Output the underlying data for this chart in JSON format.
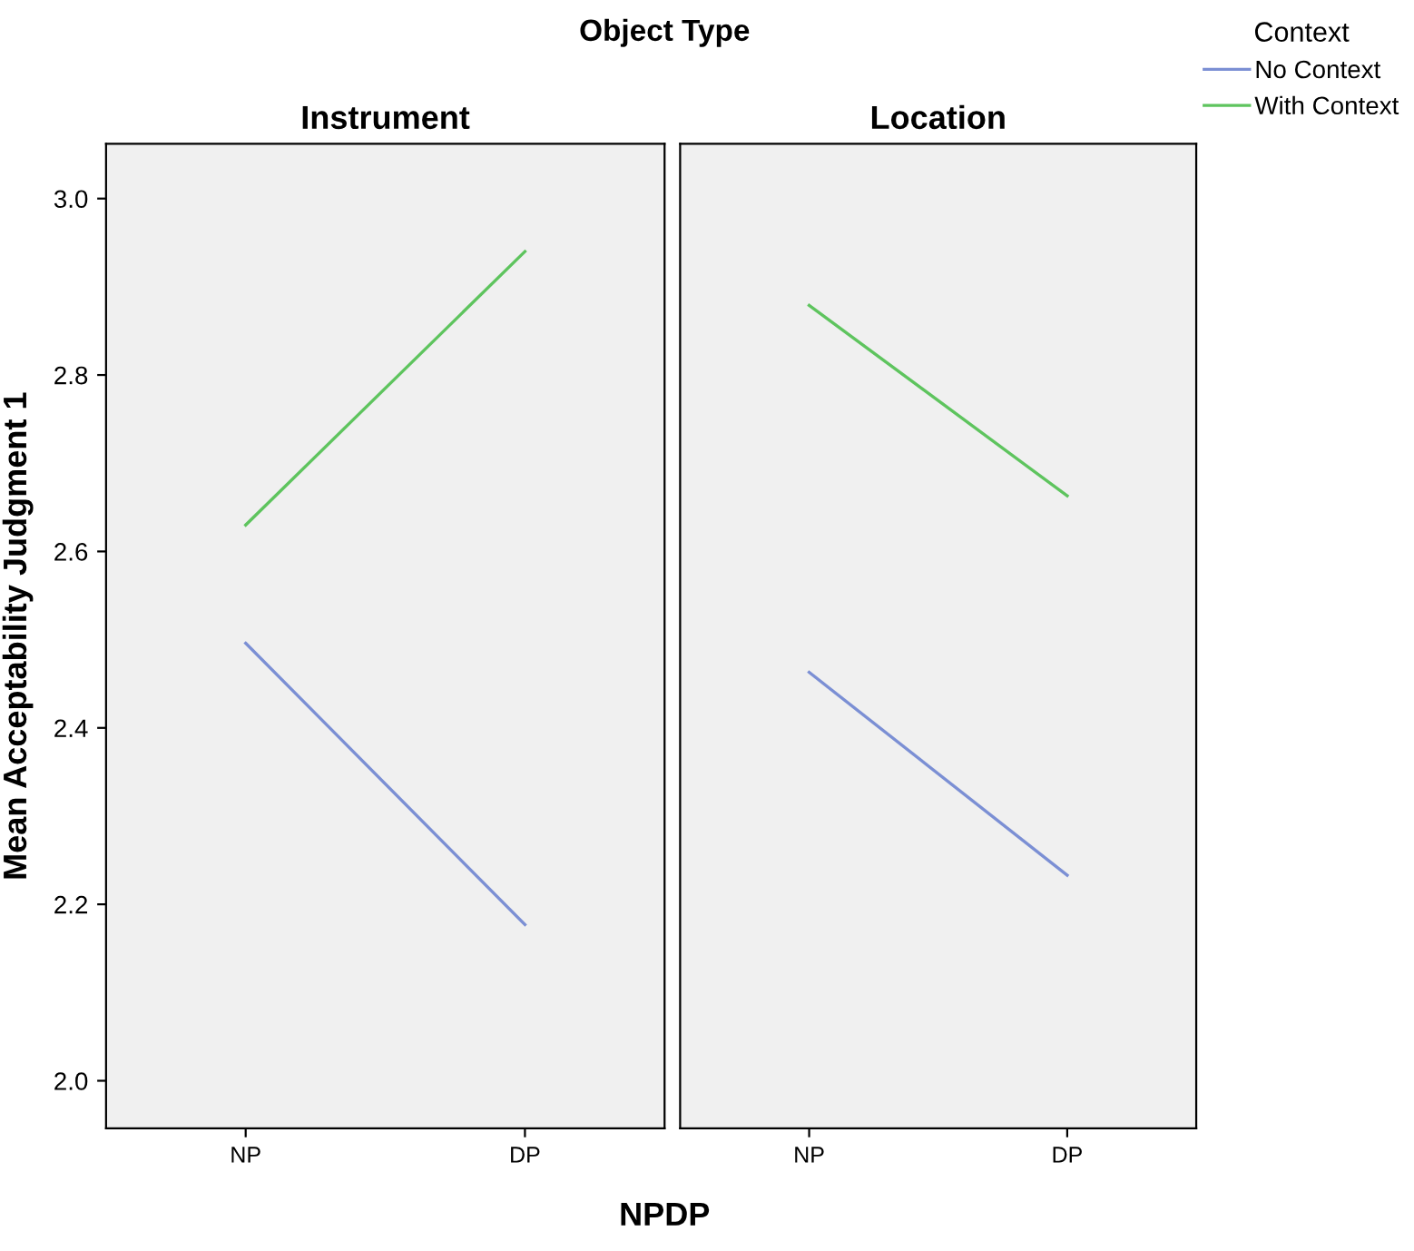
{
  "chart_data": [
    {
      "type": "line",
      "title": "Instrument",
      "annotations": [
        "Object Type"
      ],
      "xlabel": "NPDP",
      "ylabel": "Mean Acceptability Judgment 1",
      "categories": [
        "NP",
        "DP"
      ],
      "ylim": [
        1.946,
        3.062
      ],
      "yticks": [
        {
          "value": 2.0,
          "label": "2.0"
        },
        2.2,
        2.4,
        2.6,
        2.8,
        {
          "value": 3.0,
          "label": "3.0"
        }
      ],
      "grid": false,
      "legend": "top right",
      "legend_title": "Context",
      "series": [
        {
          "name": "No Context",
          "color": "#7b8fd4",
          "values": [
            2.496,
            2.177
          ]
        },
        {
          "name": "With Context",
          "color": "#5ec45e",
          "values": [
            2.63,
            2.94
          ]
        }
      ]
    },
    {
      "type": "line",
      "title": "Location",
      "categories": [
        "NP",
        "DP"
      ],
      "ylim": [
        1.946,
        3.062
      ],
      "tick_labels": "x",
      "grid": false,
      "series": [
        {
          "color": "#7b8fd4",
          "values": [
            2.463,
            2.233
          ]
        },
        {
          "color": "#5ec45e",
          "values": [
            2.879,
            2.663
          ]
        }
      ]
    }
  ]
}
